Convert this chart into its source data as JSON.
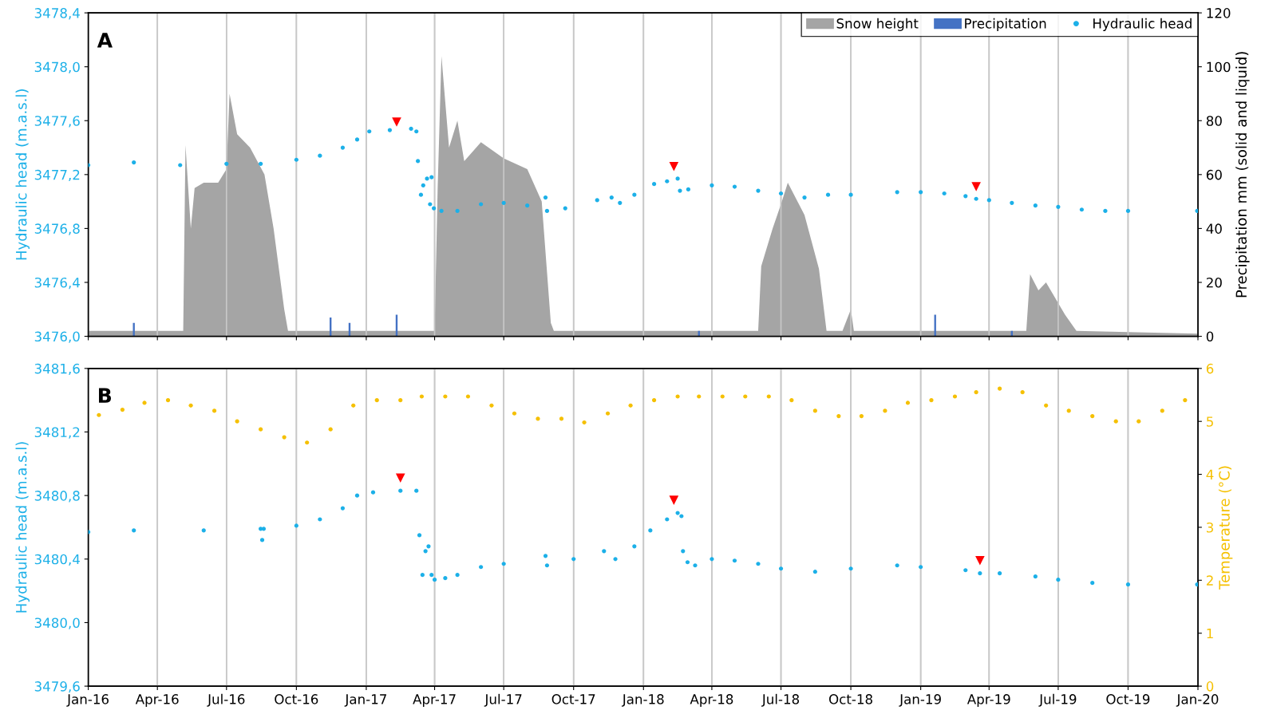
{
  "chart_data": [
    {
      "type": "scatter",
      "annotations": [
        "A"
      ],
      "ylabel": "Hydraulic head (m.a.s.l)",
      "y2label": "Precipitation mm (solid and liquid)",
      "xlim": [
        "2016-01-01",
        "2020-01-01"
      ],
      "xticks": [
        {
          "value": "2016-01-01",
          "label": null
        },
        {
          "value": "2016-04-01",
          "label": null
        },
        {
          "value": "2016-07-01",
          "label": null
        },
        {
          "value": "2016-10-01",
          "label": null
        },
        {
          "value": "2017-01-01",
          "label": null
        },
        {
          "value": "2017-04-01",
          "label": null
        },
        {
          "value": "2017-07-01",
          "label": null
        },
        {
          "value": "2017-10-01",
          "label": null
        },
        {
          "value": "2018-01-01",
          "label": null
        },
        {
          "value": "2018-04-01",
          "label": null
        },
        {
          "value": "2018-07-01",
          "label": null
        },
        {
          "value": "2018-10-01",
          "label": null
        },
        {
          "value": "2019-01-01",
          "label": null
        },
        {
          "value": "2019-04-01",
          "label": null
        },
        {
          "value": "2019-07-01",
          "label": null
        },
        {
          "value": "2019-10-01",
          "label": null
        },
        {
          "value": "2020-01-01",
          "label": null
        }
      ],
      "ylim": [
        3476.0,
        3478.4
      ],
      "yticks": [
        {
          "value": 3476.0,
          "label": "3476,0"
        },
        {
          "value": 3476.4,
          "label": "3476,4"
        },
        {
          "value": 3476.8,
          "label": "3476,8"
        },
        {
          "value": 3477.2,
          "label": "3477,2"
        },
        {
          "value": 3477.6,
          "label": "3477,6"
        },
        {
          "value": 3478.0,
          "label": "3478,0"
        },
        {
          "value": 3478.4,
          "label": "3478,4"
        }
      ],
      "y2lim": [
        0,
        120
      ],
      "y2ticks": [
        0,
        20,
        40,
        60,
        80,
        100,
        120
      ],
      "grid": "x",
      "legend": "top right",
      "tick_labels": "y",
      "series": [
        {
          "name": "Snow height",
          "type": "area",
          "axis": "y2",
          "color": "#a5a5a5",
          "x": [
            "2016-01-01",
            "2016-05-05",
            "2016-05-08",
            "2016-05-15",
            "2016-05-20",
            "2016-06-01",
            "2016-06-20",
            "2016-07-01",
            "2016-07-05",
            "2016-07-15",
            "2016-08-01",
            "2016-08-20",
            "2016-09-01",
            "2016-09-15",
            "2016-09-20",
            "2017-04-01",
            "2017-04-05",
            "2017-04-10",
            "2017-04-20",
            "2017-05-01",
            "2017-05-10",
            "2017-06-01",
            "2017-07-01",
            "2017-08-01",
            "2017-08-20",
            "2017-09-01",
            "2017-09-05",
            "2018-06-01",
            "2018-06-05",
            "2018-06-20",
            "2018-07-01",
            "2018-07-10",
            "2018-08-01",
            "2018-08-20",
            "2018-08-30",
            "2018-09-20",
            "2018-10-01",
            "2018-10-05",
            "2019-05-20",
            "2019-05-25",
            "2019-06-05",
            "2019-06-15",
            "2019-07-10",
            "2019-07-25",
            "2019-12-31"
          ],
          "values": [
            2,
            2,
            71,
            40,
            55,
            57,
            57,
            62,
            90,
            75,
            70,
            60,
            40,
            10,
            2,
            2,
            55,
            104,
            70,
            80,
            65,
            72,
            66,
            62,
            50,
            5,
            2,
            2,
            26,
            40,
            49,
            57,
            45,
            25,
            2,
            2,
            10,
            2,
            2,
            23,
            17,
            20,
            8,
            2,
            1
          ]
        },
        {
          "name": "Precipitation",
          "type": "bar",
          "axis": "y2",
          "color": "#4472c4",
          "x": [
            "2016-03-01",
            "2016-11-15",
            "2016-12-10",
            "2017-02-10",
            "2018-03-15",
            "2019-01-20",
            "2019-05-01"
          ],
          "values": [
            5,
            7,
            5,
            8,
            2,
            8,
            2
          ]
        },
        {
          "name": "Hydraulic head",
          "marker": "circle",
          "axis": "y",
          "color": "#1cb0e8",
          "x": [
            "2016-01-01",
            "2016-03-01",
            "2016-05-01",
            "2016-07-01",
            "2016-08-15",
            "2016-10-01",
            "2016-11-01",
            "2016-12-01",
            "2016-12-20",
            "2017-01-05",
            "2017-02-01",
            "2017-03-01",
            "2017-03-08",
            "2017-03-10",
            "2017-03-14",
            "2017-03-17",
            "2017-03-22",
            "2017-03-26",
            "2017-03-28",
            "2017-03-31",
            "2017-04-10",
            "2017-05-01",
            "2017-06-01",
            "2017-07-01",
            "2017-08-01",
            "2017-08-25",
            "2017-08-27",
            "2017-09-20",
            "2017-11-01",
            "2017-11-20",
            "2017-12-01",
            "2017-12-20",
            "2018-01-15",
            "2018-02-01",
            "2018-02-15",
            "2018-02-18",
            "2018-03-01",
            "2018-04-01",
            "2018-05-01",
            "2018-06-01",
            "2018-07-01",
            "2018-08-01",
            "2018-09-01",
            "2018-10-01",
            "2018-12-01",
            "2019-01-01",
            "2019-02-01",
            "2019-03-01",
            "2019-03-15",
            "2019-04-01",
            "2019-05-01",
            "2019-06-01",
            "2019-07-01",
            "2019-08-01",
            "2019-09-01",
            "2019-10-01",
            "2019-12-31"
          ],
          "values": [
            3477.27,
            3477.29,
            3477.27,
            3477.28,
            3477.28,
            3477.31,
            3477.34,
            3477.4,
            3477.46,
            3477.52,
            3477.53,
            3477.54,
            3477.52,
            3477.3,
            3477.05,
            3477.12,
            3477.17,
            3476.98,
            3477.18,
            3476.95,
            3476.93,
            3476.93,
            3476.98,
            3476.99,
            3476.97,
            3477.03,
            3476.93,
            3476.95,
            3477.01,
            3477.03,
            3476.99,
            3477.05,
            3477.13,
            3477.15,
            3477.17,
            3477.08,
            3477.09,
            3477.12,
            3477.11,
            3477.08,
            3477.06,
            3477.03,
            3477.05,
            3477.05,
            3477.07,
            3477.07,
            3477.06,
            3477.04,
            3477.02,
            3477.01,
            3476.99,
            3476.97,
            3476.96,
            3476.94,
            3476.93,
            3476.93,
            3476.93
          ]
        },
        {
          "type": "scatter",
          "marker": "triangle",
          "axis": "y",
          "color": "#ff0000",
          "x": [
            "2017-02-10",
            "2018-02-10",
            "2019-03-15"
          ],
          "values": [
            3477.59,
            3477.26,
            3477.11
          ]
        }
      ]
    },
    {
      "type": "scatter",
      "annotations": [
        "B"
      ],
      "ylabel": "Hydraulic head (m.a.s.l)",
      "y2label": "Temperature (°C)",
      "xlim": [
        "2016-01-01",
        "2020-01-01"
      ],
      "xticks": [
        {
          "value": "2016-01-01",
          "label": "Jan-16"
        },
        {
          "value": "2016-04-01",
          "label": "Apr-16"
        },
        {
          "value": "2016-07-01",
          "label": "Jul-16"
        },
        {
          "value": "2016-10-01",
          "label": "Oct-16"
        },
        {
          "value": "2017-01-01",
          "label": "Jan-17"
        },
        {
          "value": "2017-04-01",
          "label": "Apr-17"
        },
        {
          "value": "2017-07-01",
          "label": "Jul-17"
        },
        {
          "value": "2017-10-01",
          "label": "Oct-17"
        },
        {
          "value": "2018-01-01",
          "label": "Jan-18"
        },
        {
          "value": "2018-04-01",
          "label": "Apr-18"
        },
        {
          "value": "2018-07-01",
          "label": "Jul-18"
        },
        {
          "value": "2018-10-01",
          "label": "Oct-18"
        },
        {
          "value": "2019-01-01",
          "label": "Jan-19"
        },
        {
          "value": "2019-04-01",
          "label": "Apr-19"
        },
        {
          "value": "2019-07-01",
          "label": "Jul-19"
        },
        {
          "value": "2019-10-01",
          "label": "Oct-19"
        },
        {
          "value": "2020-01-01",
          "label": "Jan-20"
        }
      ],
      "ylim": [
        3479.6,
        3481.6
      ],
      "yticks": [
        {
          "value": 3479.6,
          "label": "3479,6"
        },
        {
          "value": 3480.0,
          "label": "3480,0"
        },
        {
          "value": 3480.4,
          "label": "3480,4"
        },
        {
          "value": 3480.8,
          "label": "3480,8"
        },
        {
          "value": 3481.2,
          "label": "3481,2"
        },
        {
          "value": 3481.6,
          "label": "3481,6"
        }
      ],
      "y2lim": [
        0,
        6
      ],
      "y2ticks": [
        0,
        1,
        2,
        3,
        4,
        5,
        6
      ],
      "grid": "x",
      "series": [
        {
          "type": "scatter",
          "marker": "circle",
          "axis": "y2",
          "color": "#f5c000",
          "x": [
            "2016-01-15",
            "2016-02-15",
            "2016-03-15",
            "2016-04-15",
            "2016-05-15",
            "2016-06-15",
            "2016-07-15",
            "2016-08-15",
            "2016-09-15",
            "2016-10-15",
            "2016-11-15",
            "2016-12-15",
            "2017-01-15",
            "2017-02-15",
            "2017-03-15",
            "2017-04-15",
            "2017-05-15",
            "2017-06-15",
            "2017-07-15",
            "2017-08-15",
            "2017-09-15",
            "2017-10-15",
            "2017-11-15",
            "2017-12-15",
            "2018-01-15",
            "2018-02-15",
            "2018-03-15",
            "2018-04-15",
            "2018-05-15",
            "2018-06-15",
            "2018-07-15",
            "2018-08-15",
            "2018-09-15",
            "2018-10-15",
            "2018-11-15",
            "2018-12-15",
            "2019-01-15",
            "2019-02-15",
            "2019-03-15",
            "2019-04-15",
            "2019-05-15",
            "2019-06-15",
            "2019-07-15",
            "2019-08-15",
            "2019-09-15",
            "2019-10-15",
            "2019-11-15",
            "2019-12-15"
          ],
          "values": [
            5.12,
            5.22,
            5.35,
            5.4,
            5.3,
            5.2,
            5.0,
            4.85,
            4.7,
            4.6,
            4.85,
            5.3,
            5.4,
            5.4,
            5.47,
            5.47,
            5.47,
            5.3,
            5.15,
            5.05,
            5.05,
            4.98,
            5.15,
            5.3,
            5.4,
            5.47,
            5.47,
            5.47,
            5.47,
            5.47,
            5.4,
            5.2,
            5.1,
            5.1,
            5.2,
            5.35,
            5.4,
            5.47,
            5.55,
            5.62,
            5.55,
            5.3,
            5.2,
            5.1,
            5.0,
            5.0,
            5.2,
            5.4
          ]
        },
        {
          "type": "scatter",
          "marker": "circle",
          "axis": "y",
          "color": "#1cb0e8",
          "x": [
            "2016-01-01",
            "2016-03-01",
            "2016-06-01",
            "2016-08-15",
            "2016-08-17",
            "2016-08-19",
            "2016-10-01",
            "2016-11-01",
            "2016-12-01",
            "2016-12-20",
            "2017-01-10",
            "2017-02-15",
            "2017-03-08",
            "2017-03-12",
            "2017-03-16",
            "2017-03-20",
            "2017-03-24",
            "2017-03-28",
            "2017-04-01",
            "2017-04-15",
            "2017-05-01",
            "2017-06-01",
            "2017-07-01",
            "2017-08-25",
            "2017-08-27",
            "2017-10-01",
            "2017-11-10",
            "2017-11-25",
            "2017-12-20",
            "2018-01-10",
            "2018-02-01",
            "2018-02-15",
            "2018-02-20",
            "2018-02-22",
            "2018-02-28",
            "2018-03-10",
            "2018-04-01",
            "2018-05-01",
            "2018-06-01",
            "2018-07-01",
            "2018-08-15",
            "2018-10-01",
            "2018-12-01",
            "2019-01-01",
            "2019-03-01",
            "2019-03-20",
            "2019-04-15",
            "2019-06-01",
            "2019-07-01",
            "2019-08-15",
            "2019-10-01",
            "2019-12-31"
          ],
          "values": [
            3480.57,
            3480.58,
            3480.58,
            3480.59,
            3480.52,
            3480.59,
            3480.61,
            3480.65,
            3480.72,
            3480.8,
            3480.82,
            3480.83,
            3480.83,
            3480.55,
            3480.3,
            3480.45,
            3480.48,
            3480.3,
            3480.27,
            3480.28,
            3480.3,
            3480.35,
            3480.37,
            3480.42,
            3480.36,
            3480.4,
            3480.45,
            3480.4,
            3480.48,
            3480.58,
            3480.65,
            3480.69,
            3480.67,
            3480.45,
            3480.38,
            3480.36,
            3480.4,
            3480.39,
            3480.37,
            3480.34,
            3480.32,
            3480.34,
            3480.36,
            3480.35,
            3480.33,
            3480.31,
            3480.31,
            3480.29,
            3480.27,
            3480.25,
            3480.24,
            3480.24
          ]
        },
        {
          "type": "scatter",
          "marker": "triangle",
          "axis": "y",
          "color": "#ff0000",
          "x": [
            "2017-02-15",
            "2018-02-10",
            "2019-03-20"
          ],
          "values": [
            3480.91,
            3480.77,
            3480.39
          ]
        }
      ]
    }
  ]
}
